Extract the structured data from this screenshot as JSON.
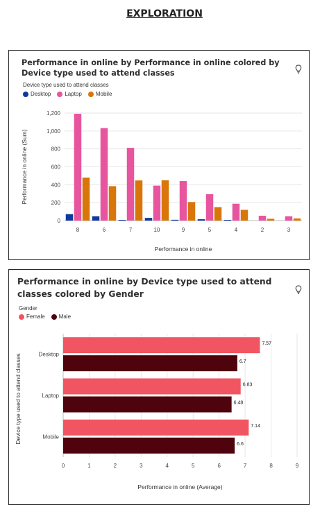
{
  "page": {
    "title": "EXPLORATION"
  },
  "icons": {
    "insight": "lightbulb-icon"
  },
  "chart_data": [
    {
      "type": "bar",
      "title": "Performance in online by Performance in online colored by Device type used to attend classes",
      "legend_title": "Device type used to attend classes",
      "legend_position": "top-left",
      "xlabel": "Performance in online",
      "ylabel": "Performance in online (Sum)",
      "ylim": [
        0,
        1200
      ],
      "yticks": [
        "0",
        "200",
        "400",
        "600",
        "800",
        "1,000",
        "1,200"
      ],
      "grid": true,
      "categories": [
        "8",
        "6",
        "7",
        "10",
        "9",
        "5",
        "4",
        "2",
        "3"
      ],
      "series": [
        {
          "name": "Desktop",
          "color": "#0e3a9c",
          "values": [
            72,
            48,
            8,
            30,
            9,
            15,
            8,
            0,
            0
          ]
        },
        {
          "name": "Laptop",
          "color": "#e8559f",
          "values": [
            1192,
            1032,
            812,
            390,
            441,
            295,
            188,
            54,
            48
          ]
        },
        {
          "name": "Mobile",
          "color": "#d8760a",
          "values": [
            480,
            384,
            448,
            450,
            207,
            150,
            120,
            20,
            24
          ]
        }
      ]
    },
    {
      "type": "bar",
      "orientation": "horizontal",
      "title": "Performance in online by Device type used to attend classes colored by Gender",
      "legend_title": "Gender",
      "legend_position": "top-left",
      "xlabel": "Performance in online (Average)",
      "ylabel": "Device type used to attend classes",
      "xlim": [
        0,
        9
      ],
      "xticks": [
        "0",
        "1",
        "2",
        "3",
        "4",
        "5",
        "6",
        "7",
        "8",
        "9"
      ],
      "grid": true,
      "categories": [
        "Desktop",
        "Laptop",
        "Mobile"
      ],
      "series": [
        {
          "name": "Female",
          "color": "#f25562",
          "values": [
            7.57,
            6.83,
            7.14
          ],
          "labels": [
            "7.57",
            "6.83",
            "7.14"
          ]
        },
        {
          "name": "Male",
          "color": "#4f030d",
          "values": [
            6.7,
            6.48,
            6.6
          ],
          "labels": [
            "6.7",
            "6.48",
            "6.6"
          ]
        }
      ]
    }
  ]
}
